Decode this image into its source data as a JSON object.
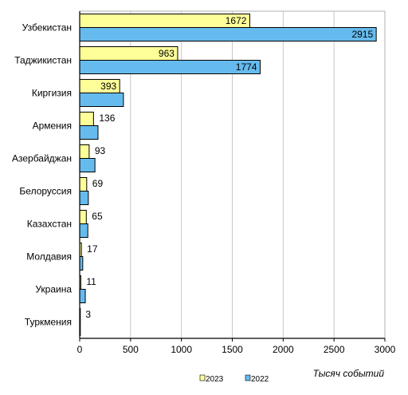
{
  "chart_data": {
    "type": "bar",
    "orientation": "horizontal",
    "categories": [
      "Узбекистан",
      "Таджикистан",
      "Киргизия",
      "Армения",
      "Азербайджан",
      "Белоруссия",
      "Казахстан",
      "Молдавия",
      "Украина",
      "Туркмения"
    ],
    "series": [
      {
        "name": "2023",
        "values": [
          1672,
          963,
          393,
          136,
          93,
          69,
          65,
          17,
          11,
          3
        ],
        "color": "#ffff99"
      },
      {
        "name": "2022",
        "values": [
          2915,
          1774,
          430,
          180,
          150,
          85,
          80,
          30,
          55,
          6
        ],
        "color": "#66bbee"
      }
    ],
    "labeled_series": [
      "2023",
      "2022"
    ],
    "value_labels": {
      "2023": [
        "1672",
        "963",
        "393",
        "136",
        "93",
        "69",
        "65",
        "17",
        "11",
        "3"
      ],
      "2022": [
        "2915",
        "1774",
        "",
        "",
        "",
        "",
        "",
        "",
        "",
        ""
      ]
    },
    "xlim": [
      0,
      3000
    ],
    "xticks": [
      "0",
      "500",
      "1000",
      "1500",
      "2000",
      "2500",
      "3000"
    ],
    "xlabel": "Тысяч событий",
    "grid": "vertical",
    "legend_position": "bottom"
  }
}
